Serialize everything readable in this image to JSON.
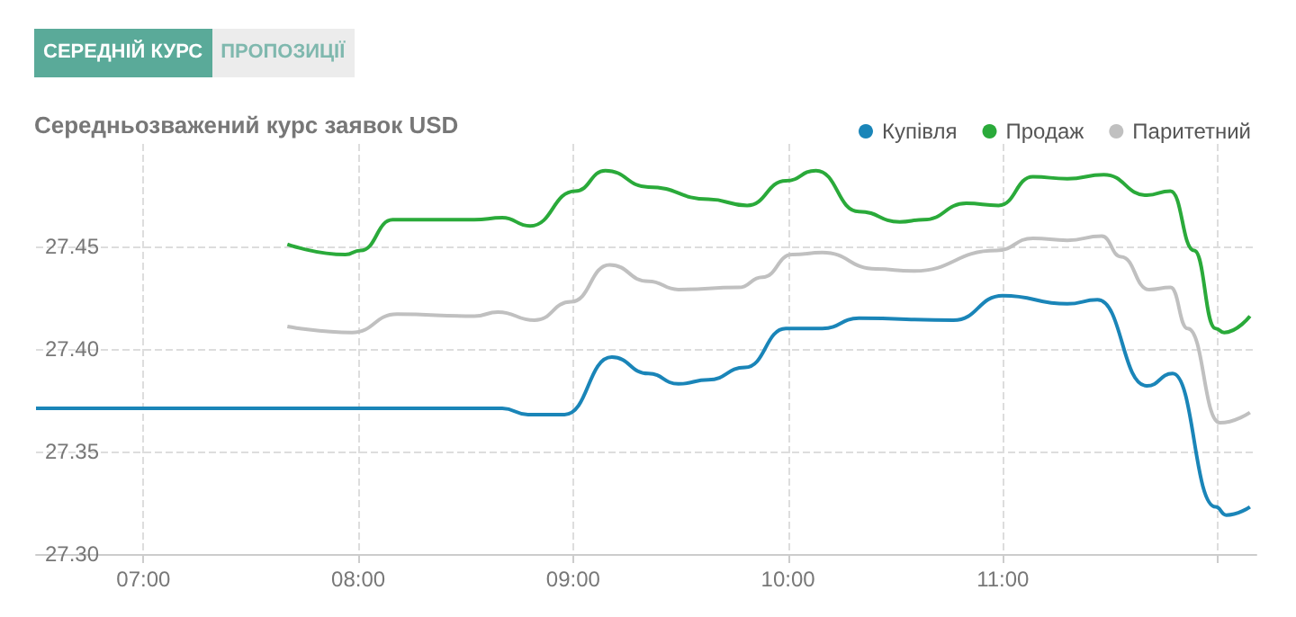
{
  "chart_data": {
    "type": "line",
    "title": "Середньозважений курс заявок USD",
    "annotations": [
      "СЕРЕДНІЙ КУРС",
      "ПРОПОЗИЦІЇ"
    ],
    "xlim": [
      6.5,
      12.18
    ],
    "xticks": [
      {
        "value": 7,
        "label": "07:00"
      },
      {
        "value": 8,
        "label": "08:00"
      },
      {
        "value": 9,
        "label": "09:00"
      },
      {
        "value": 10,
        "label": "10:00"
      },
      {
        "value": 11,
        "label": "11:00"
      },
      {
        "value": 12,
        "label": null
      }
    ],
    "ylim": [
      27.3,
      27.5
    ],
    "yticks": [
      {
        "value": 27.3,
        "label": "27.30"
      },
      {
        "value": 27.35,
        "label": "27.35"
      },
      {
        "value": 27.4,
        "label": "27.40"
      },
      {
        "value": 27.45,
        "label": "27.45"
      }
    ],
    "grid": true,
    "legend": "top right",
    "marker": "none",
    "line_style": "solid",
    "series": [
      {
        "name": "Купівля",
        "color": "#1a85b8",
        "x": [
          6.5,
          8.67,
          8.79,
          8.96,
          9.18,
          9.35,
          9.49,
          9.63,
          9.8,
          9.99,
          10.16,
          10.33,
          10.77,
          11.0,
          11.3,
          11.44,
          11.67,
          11.79,
          11.99,
          12.04,
          12.15
        ],
        "values": [
          27.371,
          27.371,
          27.368,
          27.368,
          27.396,
          27.388,
          27.383,
          27.385,
          27.391,
          27.41,
          27.41,
          27.415,
          27.414,
          27.426,
          27.422,
          27.424,
          27.382,
          27.388,
          27.323,
          27.319,
          27.323
        ]
      },
      {
        "name": "Продаж",
        "color": "#2aaa3a",
        "x": [
          7.67,
          7.94,
          8.01,
          8.16,
          8.54,
          8.67,
          8.8,
          9.01,
          9.15,
          9.35,
          9.63,
          9.81,
          9.99,
          10.13,
          10.33,
          10.52,
          10.63,
          10.83,
          10.98,
          11.14,
          11.3,
          11.47,
          11.67,
          11.78,
          11.89,
          11.99,
          12.03,
          12.15
        ],
        "values": [
          27.451,
          27.446,
          27.448,
          27.463,
          27.463,
          27.464,
          27.46,
          27.477,
          27.487,
          27.479,
          27.473,
          27.47,
          27.482,
          27.487,
          27.467,
          27.462,
          27.463,
          27.471,
          27.47,
          27.484,
          27.483,
          27.485,
          27.475,
          27.477,
          27.448,
          27.41,
          27.408,
          27.416
        ]
      },
      {
        "name": "Паритетний",
        "color": "#c0c0c0",
        "x": [
          7.67,
          7.97,
          8.18,
          8.54,
          8.65,
          8.82,
          8.99,
          9.17,
          9.35,
          9.49,
          9.77,
          9.88,
          10.02,
          10.16,
          10.41,
          10.58,
          10.97,
          11.14,
          11.3,
          11.46,
          11.55,
          11.68,
          11.78,
          11.86,
          12.01,
          12.15
        ],
        "values": [
          27.411,
          27.408,
          27.417,
          27.416,
          27.418,
          27.414,
          27.423,
          27.441,
          27.433,
          27.429,
          27.43,
          27.435,
          27.446,
          27.447,
          27.439,
          27.438,
          27.448,
          27.454,
          27.453,
          27.455,
          27.445,
          27.429,
          27.43,
          27.41,
          27.364,
          27.369
        ]
      }
    ]
  }
}
